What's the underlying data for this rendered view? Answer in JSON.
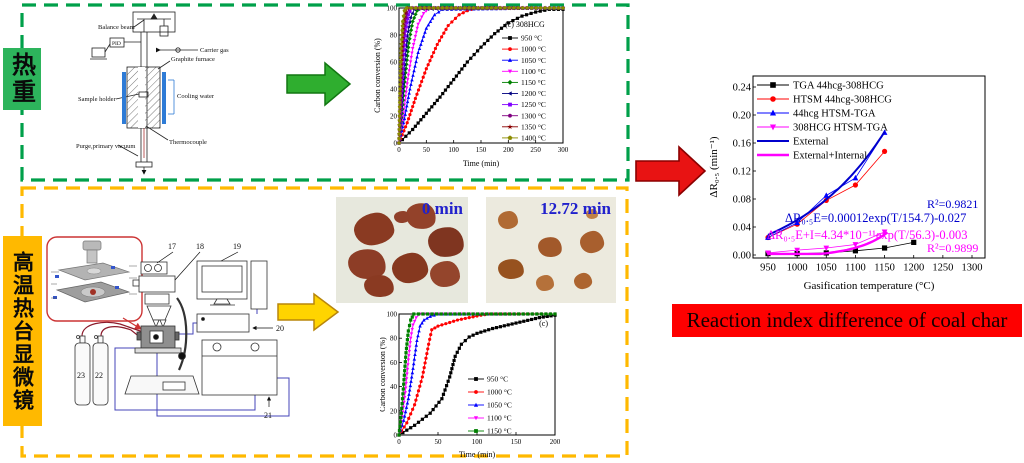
{
  "labels": {
    "tga_box": "热重",
    "htsm_box": "高温热台显微镜",
    "banner": "Reaction index difference of coal char"
  },
  "colors": {
    "green_border": "#00a04a",
    "green_fill": "#2db45c",
    "yellow": "#ffb900",
    "banner_red": "#fe0000",
    "arrow_green": "#2fae2f",
    "arrow_red": "#e81313",
    "arrow_yellow": "#ffd400",
    "photo_label_blue": "#2121cc"
  },
  "tga_schematic": {
    "balance_beam": "Balance beam",
    "pid": "PID",
    "carrier_gas": "Carrier gas",
    "graphite_furnace": "Graphite furnace",
    "sample_holder": "Sample holder",
    "cooling_water": "Cooling water",
    "thermocouple": "Thermocouple",
    "purge": "Purge,primary vacuum"
  },
  "htsm_schematic": {
    "n17": "17",
    "n18": "18",
    "n19": "19",
    "n20": "20",
    "n21": "21",
    "n22": "22",
    "n23": "23"
  },
  "photos": [
    {
      "label": "0 min",
      "particles": [
        [
          18,
          16,
          40,
          32,
          -8,
          "#8a3a22"
        ],
        [
          70,
          6,
          30,
          26,
          10,
          "#93422a"
        ],
        [
          92,
          30,
          36,
          30,
          5,
          "#7f3520"
        ],
        [
          12,
          52,
          38,
          30,
          8,
          "#8d3d26"
        ],
        [
          56,
          56,
          36,
          30,
          -5,
          "#86381f"
        ],
        [
          94,
          64,
          30,
          26,
          0,
          "#94452c"
        ],
        [
          28,
          78,
          30,
          22,
          6,
          "#8a3a22"
        ],
        [
          58,
          14,
          16,
          12,
          0,
          "#90402a"
        ]
      ]
    },
    {
      "label": "12.72 min",
      "particles": [
        [
          12,
          14,
          20,
          18,
          0,
          "#b06a33"
        ],
        [
          52,
          40,
          24,
          20,
          8,
          "#a2592a"
        ],
        [
          94,
          34,
          24,
          22,
          -6,
          "#a85f2e"
        ],
        [
          12,
          62,
          26,
          20,
          5,
          "#97521f"
        ],
        [
          50,
          78,
          18,
          16,
          0,
          "#b5713a"
        ],
        [
          88,
          76,
          18,
          16,
          -8,
          "#ad6530"
        ],
        [
          100,
          12,
          12,
          10,
          0,
          "#c08045"
        ]
      ]
    }
  ],
  "chart_data": [
    {
      "id": "tga_conversion",
      "type": "line",
      "annotation": "(c) 308HCG",
      "xlabel": "Time (min)",
      "ylabel": "Carbon conversion (%)",
      "xlim": [
        0,
        300
      ],
      "ylim": [
        0,
        100
      ],
      "xticks": [
        0,
        50,
        100,
        150,
        200,
        250,
        300
      ],
      "yticks": [
        0,
        20,
        40,
        60,
        80,
        100
      ],
      "legend_position": "inside-right",
      "series": [
        {
          "name": "950 °C",
          "color": "#000000",
          "marker": "sq",
          "points": [
            [
              0,
              0
            ],
            [
              25,
              10
            ],
            [
              50,
              22
            ],
            [
              75,
              34
            ],
            [
              100,
              47
            ],
            [
              125,
              60
            ],
            [
              150,
              71
            ],
            [
              175,
              81
            ],
            [
              200,
              89
            ],
            [
              225,
              94
            ],
            [
              250,
              97
            ],
            [
              275,
              99
            ],
            [
              300,
              99
            ]
          ]
        },
        {
          "name": "1000 °C",
          "color": "#ff0000",
          "marker": "ci",
          "points": [
            [
              0,
              0
            ],
            [
              15,
              15
            ],
            [
              30,
              33
            ],
            [
              50,
              55
            ],
            [
              70,
              73
            ],
            [
              90,
              87
            ],
            [
              110,
              95
            ],
            [
              125,
              98
            ],
            [
              140,
              100
            ],
            [
              300,
              100
            ]
          ]
        },
        {
          "name": "1050 °C",
          "color": "#0000ff",
          "marker": "tu",
          "points": [
            [
              0,
              0
            ],
            [
              10,
              18
            ],
            [
              20,
              40
            ],
            [
              35,
              67
            ],
            [
              50,
              85
            ],
            [
              65,
              95
            ],
            [
              80,
              99
            ],
            [
              300,
              100
            ]
          ]
        },
        {
          "name": "1100 °C",
          "color": "#ff00ff",
          "marker": "td",
          "points": [
            [
              0,
              0
            ],
            [
              8,
              22
            ],
            [
              16,
              47
            ],
            [
              25,
              70
            ],
            [
              35,
              88
            ],
            [
              45,
              96
            ],
            [
              55,
              100
            ],
            [
              300,
              100
            ]
          ]
        },
        {
          "name": "1150 °C",
          "color": "#008000",
          "marker": "di",
          "points": [
            [
              0,
              0
            ],
            [
              6,
              25
            ],
            [
              12,
              52
            ],
            [
              18,
              74
            ],
            [
              25,
              90
            ],
            [
              33,
              98
            ],
            [
              42,
              100
            ],
            [
              300,
              100
            ]
          ]
        },
        {
          "name": "1200 °C",
          "color": "#000080",
          "marker": "tl",
          "points": [
            [
              0,
              0
            ],
            [
              5,
              30
            ],
            [
              10,
              58
            ],
            [
              15,
              79
            ],
            [
              21,
              93
            ],
            [
              28,
              99
            ],
            [
              300,
              100
            ]
          ]
        },
        {
          "name": "1250 °C",
          "color": "#8000ff",
          "marker": "sq",
          "points": [
            [
              0,
              0
            ],
            [
              4,
              32
            ],
            [
              8,
              62
            ],
            [
              12,
              83
            ],
            [
              17,
              95
            ],
            [
              23,
              100
            ],
            [
              300,
              100
            ]
          ]
        },
        {
          "name": "1300 °C",
          "color": "#800080",
          "marker": "ci",
          "points": [
            [
              0,
              0
            ],
            [
              3,
              35
            ],
            [
              6,
              65
            ],
            [
              10,
              87
            ],
            [
              14,
              96
            ],
            [
              19,
              100
            ],
            [
              300,
              100
            ]
          ]
        },
        {
          "name": "1350 °C",
          "color": "#8b0000",
          "marker": "st",
          "points": [
            [
              0,
              0
            ],
            [
              3,
              40
            ],
            [
              5,
              68
            ],
            [
              8,
              88
            ],
            [
              12,
              97
            ],
            [
              16,
              100
            ],
            [
              300,
              100
            ]
          ]
        },
        {
          "name": "1400 °C",
          "color": "#8b8b00",
          "marker": "pe",
          "points": [
            [
              0,
              0
            ],
            [
              2,
              40
            ],
            [
              4,
              70
            ],
            [
              7,
              90
            ],
            [
              10,
              98
            ],
            [
              14,
              100
            ],
            [
              300,
              100
            ]
          ]
        }
      ]
    },
    {
      "id": "htsm_conversion",
      "type": "line",
      "annotation": "(c)",
      "xlabel": "Time (min)",
      "ylabel": "Carbon conversion (%)",
      "xlim": [
        0,
        200
      ],
      "ylim": [
        0,
        100
      ],
      "xticks": [
        0,
        50,
        100,
        150,
        200
      ],
      "yticks": [
        0,
        20,
        40,
        60,
        80,
        100
      ],
      "legend_position": "inside-bottom-right",
      "series": [
        {
          "name": "950 °C",
          "color": "#000000",
          "marker": "sq",
          "points": [
            [
              0,
              0
            ],
            [
              20,
              8
            ],
            [
              40,
              18
            ],
            [
              55,
              30
            ],
            [
              65,
              48
            ],
            [
              72,
              65
            ],
            [
              80,
              75
            ],
            [
              90,
              81
            ],
            [
              100,
              84
            ],
            [
              120,
              88
            ],
            [
              140,
              91
            ],
            [
              160,
              94
            ],
            [
              180,
              97
            ],
            [
              200,
              99
            ]
          ]
        },
        {
          "name": "1000 °C",
          "color": "#ff0000",
          "marker": "ci",
          "points": [
            [
              0,
              0
            ],
            [
              10,
              10
            ],
            [
              20,
              25
            ],
            [
              30,
              48
            ],
            [
              38,
              75
            ],
            [
              42,
              87
            ],
            [
              50,
              90
            ],
            [
              60,
              92
            ],
            [
              75,
              95
            ],
            [
              90,
              97
            ],
            [
              105,
              99
            ],
            [
              115,
              100
            ],
            [
              200,
              100
            ]
          ]
        },
        {
          "name": "1050 °C",
          "color": "#0000ff",
          "marker": "tu",
          "points": [
            [
              0,
              0
            ],
            [
              6,
              12
            ],
            [
              12,
              30
            ],
            [
              18,
              55
            ],
            [
              23,
              78
            ],
            [
              27,
              90
            ],
            [
              32,
              95
            ],
            [
              40,
              98
            ],
            [
              50,
              100
            ],
            [
              200,
              100
            ]
          ]
        },
        {
          "name": "1100 °C",
          "color": "#ff00ff",
          "marker": "td",
          "points": [
            [
              0,
              0
            ],
            [
              4,
              15
            ],
            [
              8,
              35
            ],
            [
              12,
              62
            ],
            [
              15,
              80
            ],
            [
              18,
              91
            ],
            [
              22,
              97
            ],
            [
              27,
              100
            ],
            [
              200,
              100
            ]
          ]
        },
        {
          "name": "1150 °C",
          "color": "#008000",
          "marker": "sq",
          "points": [
            [
              0,
              0
            ],
            [
              3,
              18
            ],
            [
              6,
              42
            ],
            [
              9,
              68
            ],
            [
              12,
              86
            ],
            [
              15,
              95
            ],
            [
              19,
              100
            ],
            [
              200,
              100
            ]
          ]
        }
      ]
    },
    {
      "id": "reaction_index",
      "type": "scatter",
      "xlabel": "Gasification temperature (°C)",
      "ylabel": "ΔR₀.₅ (min⁻¹)",
      "xlim": [
        950,
        1300
      ],
      "ylim": [
        0.0,
        0.24
      ],
      "xticks": [
        950,
        1000,
        1050,
        1100,
        1150,
        1200,
        1250,
        1300
      ],
      "yticks": [
        0.0,
        0.04,
        0.08,
        0.12,
        0.16,
        0.2,
        0.24
      ],
      "legend_position": "inside-top-left",
      "series": [
        {
          "name": "TGA  44hcg-308HCG",
          "color": "#000000",
          "marker": "sq",
          "x": [
            950,
            1000,
            1050,
            1100,
            1150,
            1200
          ],
          "y": [
            0.002,
            0.002,
            0.003,
            0.006,
            0.01,
            0.018
          ]
        },
        {
          "name": "HTSM 44hcg-308HCG",
          "color": "#ff0000",
          "marker": "ci",
          "x": [
            950,
            1000,
            1050,
            1100,
            1150
          ],
          "y": [
            0.025,
            0.044,
            0.078,
            0.1,
            0.148
          ]
        },
        {
          "name": "44hcg HTSM-TGA",
          "color": "#0000ff",
          "marker": "tu",
          "x": [
            950,
            1000,
            1050,
            1100,
            1150
          ],
          "y": [
            0.025,
            0.046,
            0.085,
            0.11,
            0.175
          ]
        },
        {
          "name": "308HCG HTSM-TGA",
          "color": "#ff00ff",
          "marker": "td",
          "x": [
            950,
            1000,
            1050,
            1100,
            1150
          ],
          "y": [
            0.003,
            0.007,
            0.01,
            0.015,
            0.033
          ]
        },
        {
          "name": "External",
          "color": "#0000cd",
          "fit": {
            "a": 0.00012,
            "tau": 154.7,
            "b": -0.027,
            "range": [
              950,
              1152
            ]
          },
          "width": 2
        },
        {
          "name": "External+Internal",
          "color": "#ff00ff",
          "fit": {
            "a": 4.34e-11,
            "tau": 56.3,
            "b": -0.003,
            "range": [
              950,
              1155
            ]
          },
          "width": 2.4
        }
      ],
      "annotations": [
        {
          "text": "R²=0.9821",
          "color": "#0000cd"
        },
        {
          "text": "ΔR₀.₅E=0.00012exp(T/154.7)-0.027",
          "color": "#0000cd"
        },
        {
          "text": "ΔR₀.₅E+I=4.34*10⁻¹¹exp(T/56.3)-0.003",
          "color": "#ff00ff"
        },
        {
          "text": "R²=0.9899",
          "color": "#ff00ff"
        }
      ]
    }
  ]
}
